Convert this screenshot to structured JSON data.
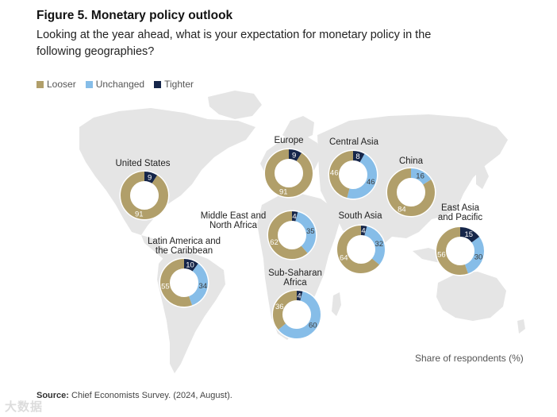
{
  "figure": {
    "title": "Figure 5. Monetary policy outlook",
    "subtitle": "Looking at the year ahead, what is your expectation for monetary policy in the following geographies?",
    "share_label": "Share of respondents (%)",
    "source_label": "Source:",
    "source_text": " Chief Economists Survey. (2024, August).",
    "watermark": "大数据"
  },
  "colors": {
    "looser": "#b19f6a",
    "unchanged": "#86bde8",
    "tighter": "#16264a",
    "map": "#e5e5e5"
  },
  "chart_data": {
    "type": "pie",
    "variant": "donut",
    "series_names": [
      "Looser",
      "Unchanged",
      "Tighter"
    ],
    "legend_position": "top-left",
    "unit": "%",
    "regions": [
      {
        "label": [
          "United States"
        ],
        "looser": 91,
        "unchanged": null,
        "tighter": 9
      },
      {
        "label": [
          "Europe"
        ],
        "looser": 91,
        "unchanged": null,
        "tighter": 9
      },
      {
        "label": [
          "Central Asia"
        ],
        "looser": 46,
        "unchanged": 46,
        "tighter": 8
      },
      {
        "label": [
          "China"
        ],
        "looser": 84,
        "unchanged": 16,
        "tighter": null
      },
      {
        "label": [
          "Middle East and",
          "North Africa"
        ],
        "looser": 62,
        "unchanged": 35,
        "tighter": 4
      },
      {
        "label": [
          "South Asia"
        ],
        "looser": 64,
        "unchanged": 32,
        "tighter": 4
      },
      {
        "label": [
          "East Asia",
          "and Pacific"
        ],
        "looser": 56,
        "unchanged": 30,
        "tighter": 15
      },
      {
        "label": [
          "Latin America and",
          "the Caribbean"
        ],
        "looser": 55,
        "unchanged": 34,
        "tighter": 10
      },
      {
        "label": [
          "Sub-Saharan",
          "Africa"
        ],
        "looser": 36,
        "unchanged": 60,
        "tighter": 4
      }
    ]
  }
}
